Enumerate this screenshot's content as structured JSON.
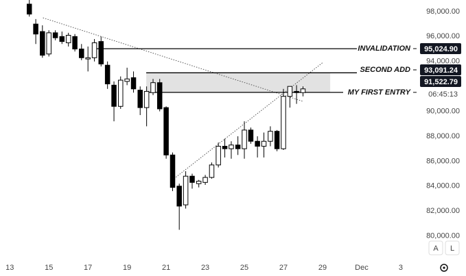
{
  "chart_data": {
    "type": "candlestick",
    "x": [
      14.0,
      14.33,
      14.67,
      15.0,
      15.33,
      15.67,
      16.0,
      16.33,
      16.67,
      17.0,
      17.33,
      17.67,
      18.0,
      18.33,
      18.67,
      19.0,
      19.33,
      19.67,
      20.0,
      20.33,
      20.67,
      21.0,
      21.33,
      21.67,
      22.0,
      22.33,
      22.67,
      23.0,
      23.33,
      23.67,
      24.0,
      24.33,
      24.67,
      25.0,
      25.33,
      25.67,
      26.0,
      26.33,
      26.67,
      27.0,
      27.33,
      27.67,
      28.0
    ],
    "open": [
      98600,
      97000,
      96400,
      94600,
      96300,
      96000,
      95500,
      96000,
      95000,
      94200,
      94300,
      95600,
      93700,
      92100,
      90400,
      92400,
      92700,
      91700,
      90300,
      91500,
      92300,
      90300,
      86500,
      84000,
      82500,
      84800,
      84200,
      84300,
      84700,
      85700,
      87200,
      87000,
      87300,
      87000,
      88500,
      87600,
      87200,
      87600,
      88400,
      87000,
      91200,
      91600,
      91500
    ],
    "high": [
      99000,
      97400,
      96900,
      96500,
      96500,
      96400,
      96300,
      96200,
      95400,
      95200,
      95800,
      96000,
      94000,
      92400,
      92800,
      93500,
      93200,
      92000,
      92000,
      92600,
      92600,
      90400,
      86700,
      84200,
      85200,
      85000,
      84500,
      84900,
      85900,
      87500,
      87800,
      87600,
      88000,
      89200,
      88700,
      88000,
      88300,
      88800,
      88500,
      91800,
      92000,
      92100,
      92000
    ],
    "low": [
      97600,
      95400,
      94300,
      94400,
      95700,
      95400,
      95200,
      94800,
      94100,
      93200,
      94000,
      93600,
      91800,
      89200,
      90200,
      92100,
      91500,
      89700,
      88800,
      91300,
      90000,
      86200,
      83600,
      80500,
      82200,
      83800,
      83900,
      84100,
      84600,
      85500,
      86300,
      86200,
      86500,
      86200,
      87400,
      86300,
      86300,
      87200,
      86800,
      86900,
      90300,
      90600,
      91200
    ],
    "close": [
      97800,
      96200,
      94500,
      96300,
      95900,
      95600,
      96100,
      95000,
      94300,
      94300,
      95500,
      93800,
      92200,
      90400,
      92500,
      92600,
      91800,
      90300,
      91600,
      92300,
      90200,
      86500,
      83900,
      82400,
      84800,
      84300,
      84400,
      84700,
      85700,
      87200,
      87000,
      87300,
      87000,
      88500,
      87600,
      87200,
      87600,
      88400,
      87000,
      91200,
      92000,
      91500,
      91800
    ],
    "up_color": "#ffffff",
    "down_color": "#000000",
    "xlim": [
      12.5,
      33.6
    ],
    "ylim": [
      79430,
      98930
    ],
    "xticks": [
      13,
      15,
      17,
      19,
      21,
      23,
      25,
      27,
      29,
      {
        "value": 31,
        "label": "Dec"
      },
      {
        "value": 33,
        "label": "3"
      }
    ],
    "yticks": [
      {
        "value": 98000,
        "label": "98,000.00"
      },
      {
        "value": 96000,
        "label": "96,000.00"
      },
      {
        "value": 94000,
        "label": "94,000.00"
      },
      {
        "value": 90000,
        "label": "90,000.00"
      },
      {
        "value": 88000,
        "label": "88,000.00"
      },
      {
        "value": 86000,
        "label": "86,000.00"
      },
      {
        "value": 84000,
        "label": "84,000.00"
      },
      {
        "value": 82000,
        "label": "82,000.00"
      },
      {
        "value": 80000,
        "label": "80,000.00"
      }
    ],
    "levels": [
      {
        "name": "INVALIDATION",
        "value": 95024.9,
        "value_label": "95,024.90",
        "x_start": 17.45
      },
      {
        "name": "SECOND ADD",
        "value": 93091.24,
        "value_label": "93,091.24",
        "x_start": 19.98
      },
      {
        "name": "MY FIRST ENTRY",
        "value": 91522.79,
        "value_label": "91,522.79",
        "x_start": 19.98
      }
    ],
    "zone": {
      "from": 91522.79,
      "to": 93091.24,
      "x": [
        19.98,
        29.39
      ]
    },
    "trendlines": [
      {
        "x": [
          14.7,
          28.0
        ],
        "y": [
          97500,
          90800
        ]
      },
      {
        "x": [
          21.4,
          29.0
        ],
        "y": [
          84600,
          93900
        ]
      }
    ],
    "countdown": "06:45:13",
    "buttons": [
      "A",
      "L"
    ]
  }
}
